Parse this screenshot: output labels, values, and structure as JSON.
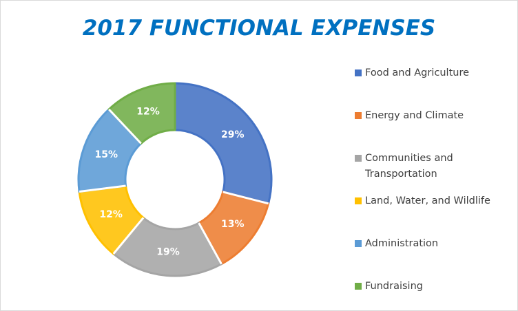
{
  "chart_data": {
    "type": "donut",
    "title": "2017 FUNCTIONAL EXPENSES",
    "categories": [
      "Food and Agriculture",
      "Energy and Climate",
      "Communities and Transportation",
      "Land, Water, and Wildlife",
      "Administration",
      "Fundraising"
    ],
    "values": [
      29,
      13,
      19,
      12,
      15,
      12
    ],
    "value_labels": [
      "29%",
      "13%",
      "19%",
      "12%",
      "15%",
      "12%"
    ],
    "colors": [
      "#4472c4",
      "#ed7d31",
      "#a5a5a5",
      "#ffc000",
      "#5b9bd5",
      "#70ad47"
    ],
    "legend": "right"
  }
}
